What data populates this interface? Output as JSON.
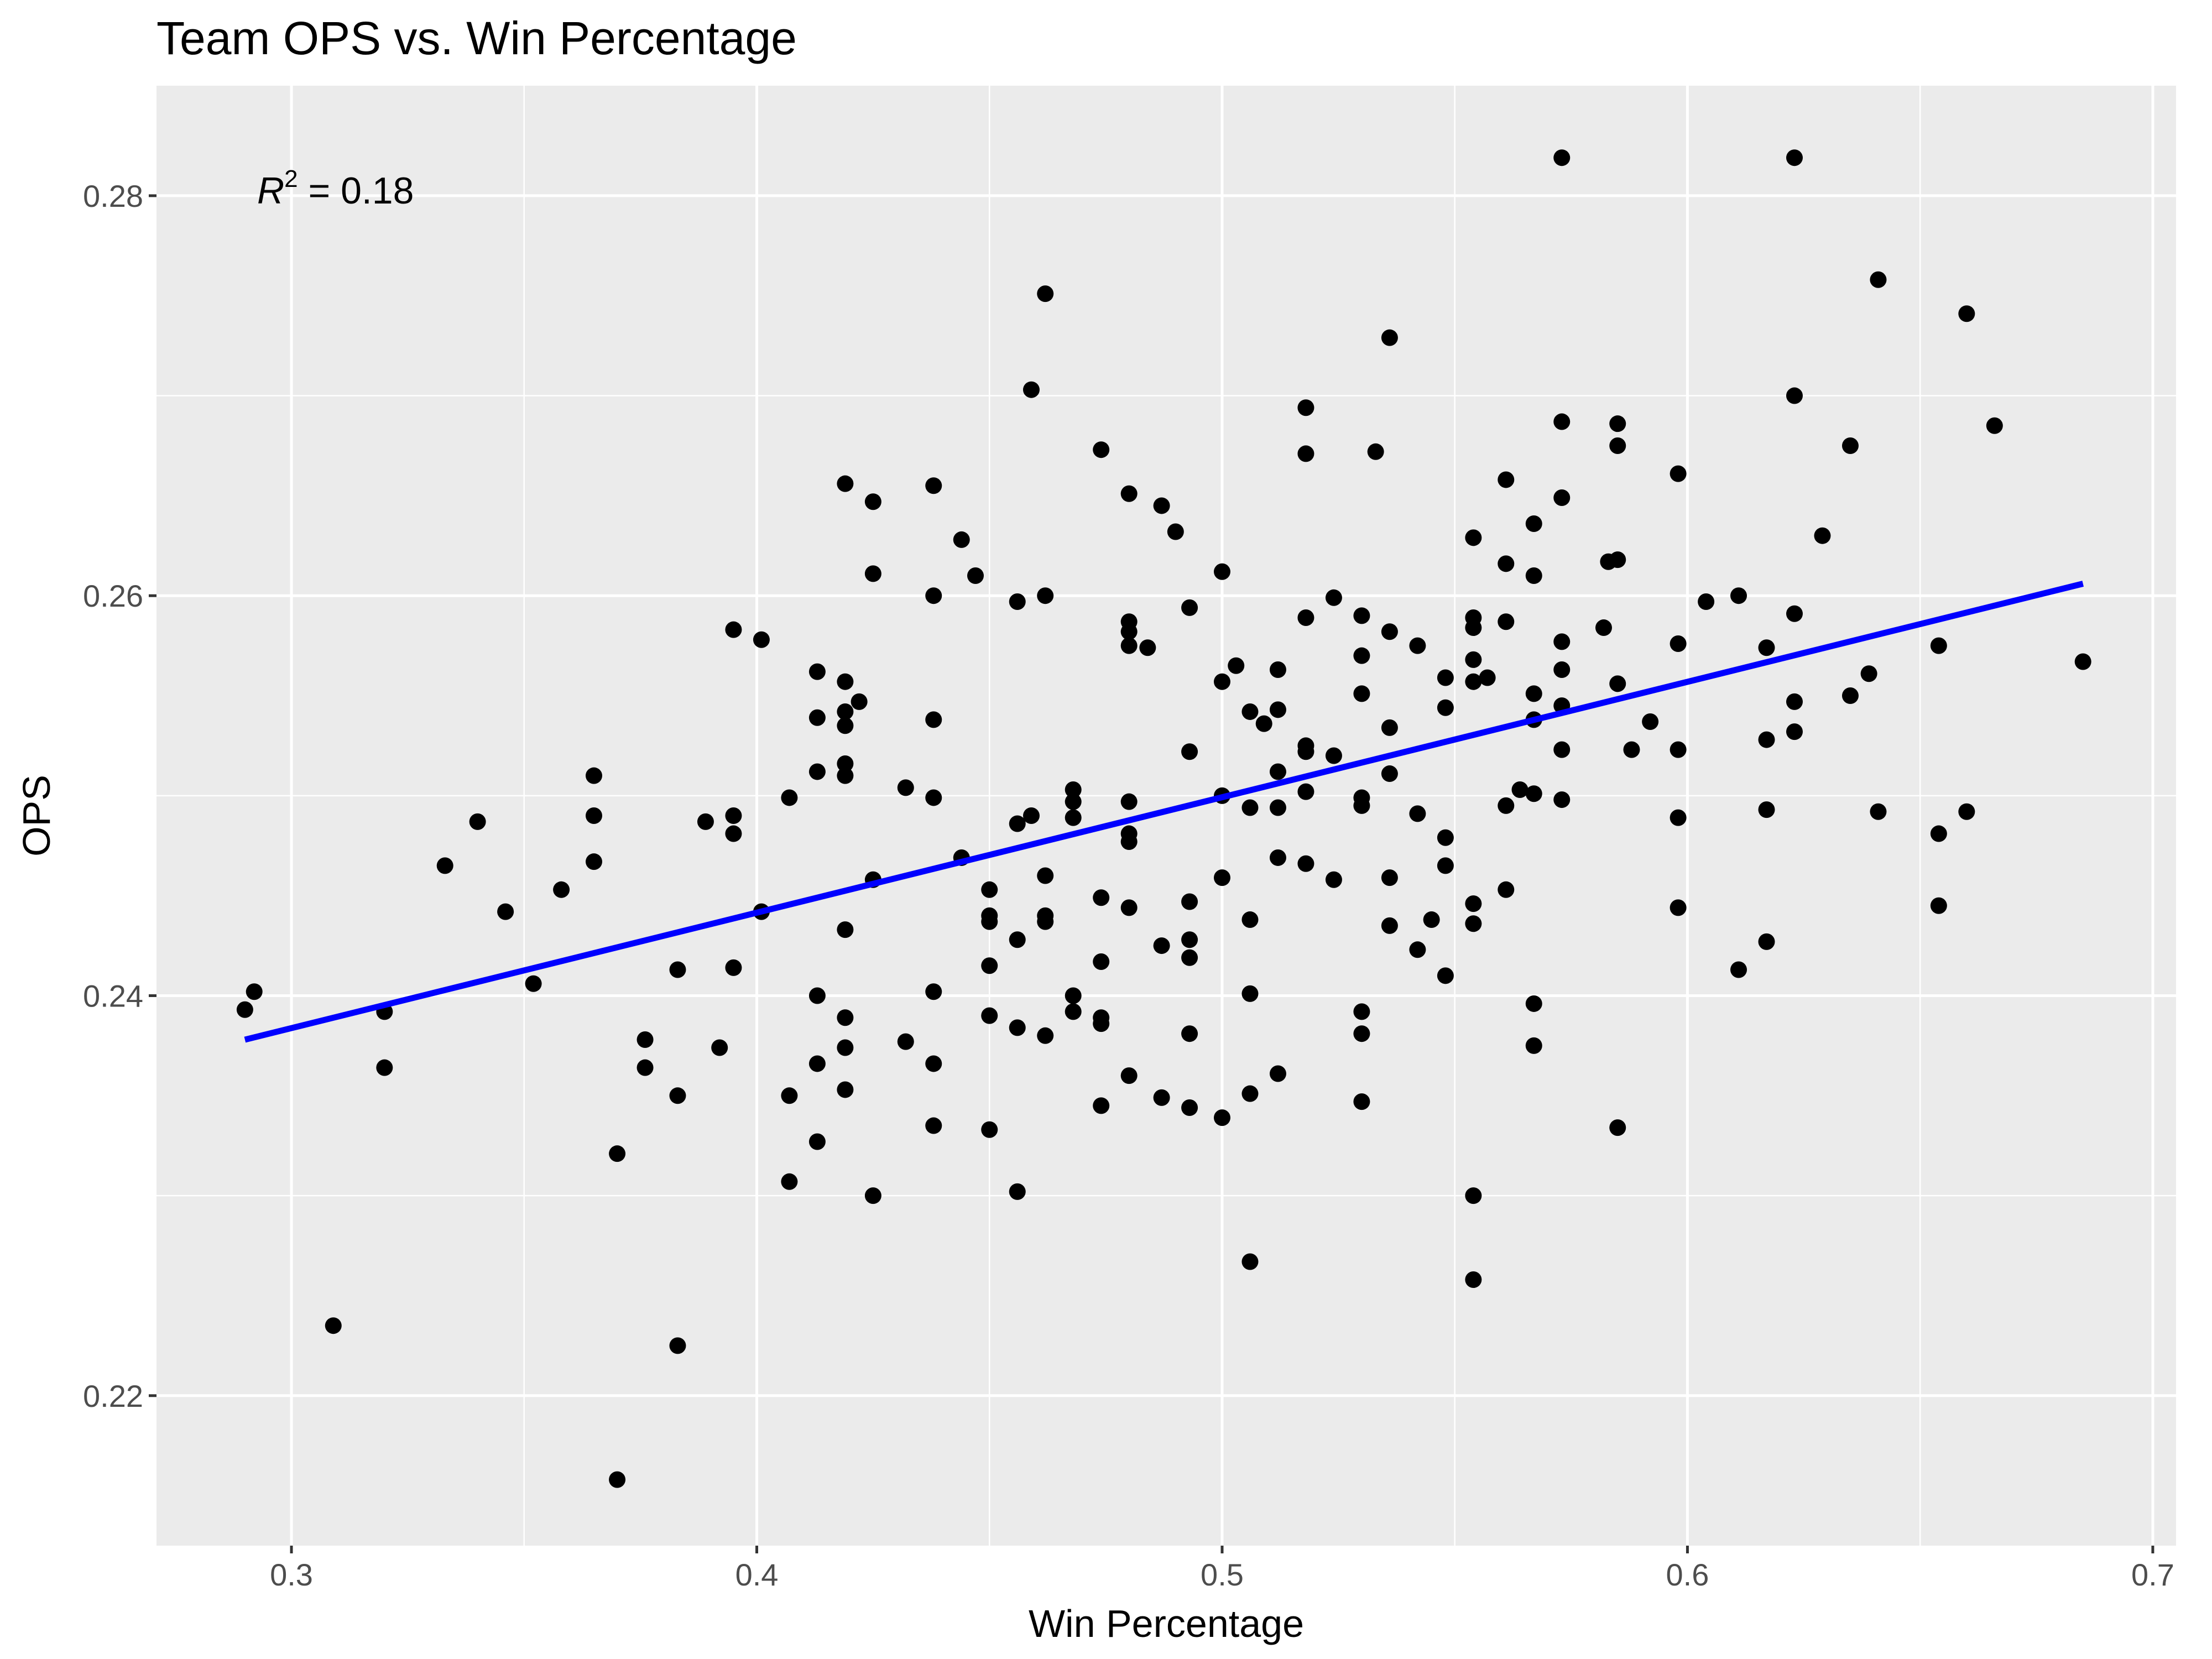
{
  "chart_data": {
    "type": "scatter",
    "title": "Team OPS vs. Win Percentage",
    "xlabel": "Win Percentage",
    "ylabel": "OPS",
    "xlim": [
      0.271,
      0.705
    ],
    "ylim": [
      0.2125,
      0.2855
    ],
    "xticks": [
      0.3,
      0.4,
      0.5,
      0.6,
      0.7
    ],
    "xtick_labels": [
      "0.3",
      "0.4",
      "0.5",
      "0.6",
      "0.7"
    ],
    "yticks": [
      0.22,
      0.24,
      0.26,
      0.28
    ],
    "ytick_labels": [
      "0.22",
      "0.24",
      "0.26",
      "0.28"
    ],
    "grid": true,
    "colors": {
      "panel": "#ebebeb",
      "grid": "#ffffff",
      "points": "#000000",
      "fit_line": "#0000ff"
    },
    "annotation": {
      "r_symbol": "R",
      "superscript": "2",
      "text": " = 0.18",
      "value": 0.18
    },
    "fit_line": {
      "x": [
        0.29,
        0.685
      ],
      "y": [
        0.2378,
        0.2606
      ]
    },
    "points": [
      [
        0.29,
        0.2393
      ],
      [
        0.292,
        0.2402
      ],
      [
        0.309,
        0.2235
      ],
      [
        0.32,
        0.2392
      ],
      [
        0.32,
        0.2364
      ],
      [
        0.333,
        0.2465
      ],
      [
        0.34,
        0.2487
      ],
      [
        0.346,
        0.2442
      ],
      [
        0.352,
        0.2406
      ],
      [
        0.358,
        0.2453
      ],
      [
        0.365,
        0.251
      ],
      [
        0.365,
        0.249
      ],
      [
        0.365,
        0.2467
      ],
      [
        0.37,
        0.2321
      ],
      [
        0.37,
        0.2158
      ],
      [
        0.376,
        0.2378
      ],
      [
        0.376,
        0.2364
      ],
      [
        0.383,
        0.2413
      ],
      [
        0.383,
        0.235
      ],
      [
        0.383,
        0.2225
      ],
      [
        0.389,
        0.2487
      ],
      [
        0.392,
        0.2374
      ],
      [
        0.395,
        0.2583
      ],
      [
        0.395,
        0.249
      ],
      [
        0.395,
        0.2481
      ],
      [
        0.395,
        0.2414
      ],
      [
        0.401,
        0.2578
      ],
      [
        0.401,
        0.2442
      ],
      [
        0.407,
        0.2499
      ],
      [
        0.407,
        0.235
      ],
      [
        0.407,
        0.2307
      ],
      [
        0.413,
        0.2562
      ],
      [
        0.413,
        0.2539
      ],
      [
        0.413,
        0.2512
      ],
      [
        0.413,
        0.24
      ],
      [
        0.413,
        0.2366
      ],
      [
        0.413,
        0.2327
      ],
      [
        0.419,
        0.2656
      ],
      [
        0.419,
        0.2557
      ],
      [
        0.419,
        0.2542
      ],
      [
        0.419,
        0.2535
      ],
      [
        0.419,
        0.2516
      ],
      [
        0.419,
        0.251
      ],
      [
        0.419,
        0.2433
      ],
      [
        0.419,
        0.2389
      ],
      [
        0.419,
        0.2374
      ],
      [
        0.419,
        0.2353
      ],
      [
        0.422,
        0.2547
      ],
      [
        0.425,
        0.2647
      ],
      [
        0.425,
        0.2611
      ],
      [
        0.425,
        0.2458
      ],
      [
        0.425,
        0.23
      ],
      [
        0.432,
        0.2504
      ],
      [
        0.432,
        0.2377
      ],
      [
        0.438,
        0.2655
      ],
      [
        0.438,
        0.26
      ],
      [
        0.438,
        0.2538
      ],
      [
        0.438,
        0.2499
      ],
      [
        0.438,
        0.2402
      ],
      [
        0.438,
        0.2366
      ],
      [
        0.438,
        0.2335
      ],
      [
        0.444,
        0.2628
      ],
      [
        0.444,
        0.2469
      ],
      [
        0.447,
        0.261
      ],
      [
        0.45,
        0.2453
      ],
      [
        0.45,
        0.244
      ],
      [
        0.45,
        0.2437
      ],
      [
        0.45,
        0.2415
      ],
      [
        0.45,
        0.239
      ],
      [
        0.45,
        0.2333
      ],
      [
        0.456,
        0.2597
      ],
      [
        0.456,
        0.2486
      ],
      [
        0.456,
        0.2428
      ],
      [
        0.456,
        0.2384
      ],
      [
        0.456,
        0.2302
      ],
      [
        0.459,
        0.2703
      ],
      [
        0.459,
        0.249
      ],
      [
        0.462,
        0.2751
      ],
      [
        0.462,
        0.26
      ],
      [
        0.462,
        0.246
      ],
      [
        0.462,
        0.244
      ],
      [
        0.462,
        0.2437
      ],
      [
        0.462,
        0.238
      ],
      [
        0.468,
        0.2503
      ],
      [
        0.468,
        0.2497
      ],
      [
        0.468,
        0.2489
      ],
      [
        0.468,
        0.24
      ],
      [
        0.468,
        0.2392
      ],
      [
        0.474,
        0.2673
      ],
      [
        0.474,
        0.2449
      ],
      [
        0.474,
        0.2417
      ],
      [
        0.474,
        0.2389
      ],
      [
        0.474,
        0.2386
      ],
      [
        0.474,
        0.2345
      ],
      [
        0.48,
        0.2651
      ],
      [
        0.48,
        0.2587
      ],
      [
        0.48,
        0.2582
      ],
      [
        0.48,
        0.2575
      ],
      [
        0.48,
        0.2497
      ],
      [
        0.48,
        0.2481
      ],
      [
        0.48,
        0.2477
      ],
      [
        0.48,
        0.2444
      ],
      [
        0.48,
        0.236
      ],
      [
        0.484,
        0.2574
      ],
      [
        0.487,
        0.2645
      ],
      [
        0.487,
        0.2425
      ],
      [
        0.487,
        0.2349
      ],
      [
        0.49,
        0.2632
      ],
      [
        0.493,
        0.2594
      ],
      [
        0.493,
        0.2522
      ],
      [
        0.493,
        0.2447
      ],
      [
        0.493,
        0.2428
      ],
      [
        0.493,
        0.2419
      ],
      [
        0.493,
        0.2381
      ],
      [
        0.493,
        0.2344
      ],
      [
        0.5,
        0.2612
      ],
      [
        0.5,
        0.2557
      ],
      [
        0.5,
        0.25
      ],
      [
        0.5,
        0.2459
      ],
      [
        0.5,
        0.2339
      ],
      [
        0.503,
        0.2565
      ],
      [
        0.506,
        0.2542
      ],
      [
        0.506,
        0.2494
      ],
      [
        0.506,
        0.2438
      ],
      [
        0.506,
        0.2401
      ],
      [
        0.506,
        0.2351
      ],
      [
        0.506,
        0.2267
      ],
      [
        0.509,
        0.2536
      ],
      [
        0.512,
        0.2563
      ],
      [
        0.512,
        0.2543
      ],
      [
        0.512,
        0.2512
      ],
      [
        0.512,
        0.2494
      ],
      [
        0.512,
        0.2469
      ],
      [
        0.512,
        0.2361
      ],
      [
        0.518,
        0.2694
      ],
      [
        0.518,
        0.2671
      ],
      [
        0.518,
        0.2589
      ],
      [
        0.518,
        0.2525
      ],
      [
        0.518,
        0.2522
      ],
      [
        0.518,
        0.2502
      ],
      [
        0.518,
        0.2466
      ],
      [
        0.524,
        0.2599
      ],
      [
        0.524,
        0.252
      ],
      [
        0.524,
        0.2458
      ],
      [
        0.53,
        0.259
      ],
      [
        0.53,
        0.257
      ],
      [
        0.53,
        0.2551
      ],
      [
        0.53,
        0.2499
      ],
      [
        0.53,
        0.2495
      ],
      [
        0.53,
        0.2392
      ],
      [
        0.53,
        0.2381
      ],
      [
        0.53,
        0.2347
      ],
      [
        0.533,
        0.2672
      ],
      [
        0.536,
        0.2729
      ],
      [
        0.536,
        0.2582
      ],
      [
        0.536,
        0.2534
      ],
      [
        0.536,
        0.2511
      ],
      [
        0.536,
        0.2459
      ],
      [
        0.536,
        0.2435
      ],
      [
        0.542,
        0.2575
      ],
      [
        0.542,
        0.2491
      ],
      [
        0.542,
        0.2423
      ],
      [
        0.545,
        0.2438
      ],
      [
        0.548,
        0.2559
      ],
      [
        0.548,
        0.2544
      ],
      [
        0.548,
        0.2479
      ],
      [
        0.548,
        0.2465
      ],
      [
        0.548,
        0.241
      ],
      [
        0.554,
        0.2629
      ],
      [
        0.554,
        0.2589
      ],
      [
        0.554,
        0.2584
      ],
      [
        0.554,
        0.2568
      ],
      [
        0.554,
        0.2557
      ],
      [
        0.554,
        0.2446
      ],
      [
        0.554,
        0.2436
      ],
      [
        0.554,
        0.23
      ],
      [
        0.554,
        0.2258
      ],
      [
        0.557,
        0.2559
      ],
      [
        0.561,
        0.2658
      ],
      [
        0.561,
        0.2616
      ],
      [
        0.561,
        0.2587
      ],
      [
        0.561,
        0.2495
      ],
      [
        0.561,
        0.2453
      ],
      [
        0.564,
        0.2503
      ],
      [
        0.567,
        0.2636
      ],
      [
        0.567,
        0.261
      ],
      [
        0.567,
        0.2551
      ],
      [
        0.567,
        0.2538
      ],
      [
        0.567,
        0.2501
      ],
      [
        0.567,
        0.2396
      ],
      [
        0.567,
        0.2375
      ],
      [
        0.573,
        0.2819
      ],
      [
        0.573,
        0.2687
      ],
      [
        0.573,
        0.2649
      ],
      [
        0.573,
        0.2577
      ],
      [
        0.573,
        0.2563
      ],
      [
        0.573,
        0.2545
      ],
      [
        0.573,
        0.2523
      ],
      [
        0.573,
        0.2498
      ],
      [
        0.582,
        0.2584
      ],
      [
        0.583,
        0.2617
      ],
      [
        0.585,
        0.2686
      ],
      [
        0.585,
        0.2675
      ],
      [
        0.585,
        0.2618
      ],
      [
        0.585,
        0.2556
      ],
      [
        0.585,
        0.2334
      ],
      [
        0.588,
        0.2523
      ],
      [
        0.592,
        0.2537
      ],
      [
        0.598,
        0.2661
      ],
      [
        0.598,
        0.2576
      ],
      [
        0.598,
        0.2523
      ],
      [
        0.598,
        0.2489
      ],
      [
        0.598,
        0.2444
      ],
      [
        0.604,
        0.2597
      ],
      [
        0.611,
        0.26
      ],
      [
        0.611,
        0.2413
      ],
      [
        0.617,
        0.2574
      ],
      [
        0.617,
        0.2528
      ],
      [
        0.617,
        0.2493
      ],
      [
        0.617,
        0.2427
      ],
      [
        0.623,
        0.2819
      ],
      [
        0.623,
        0.27
      ],
      [
        0.623,
        0.2591
      ],
      [
        0.623,
        0.2547
      ],
      [
        0.623,
        0.2532
      ],
      [
        0.629,
        0.263
      ],
      [
        0.635,
        0.2675
      ],
      [
        0.635,
        0.255
      ],
      [
        0.639,
        0.2561
      ],
      [
        0.641,
        0.2758
      ],
      [
        0.641,
        0.2492
      ],
      [
        0.654,
        0.2575
      ],
      [
        0.654,
        0.2481
      ],
      [
        0.654,
        0.2445
      ],
      [
        0.66,
        0.2741
      ],
      [
        0.66,
        0.2492
      ],
      [
        0.666,
        0.2685
      ],
      [
        0.685,
        0.2567
      ]
    ]
  }
}
